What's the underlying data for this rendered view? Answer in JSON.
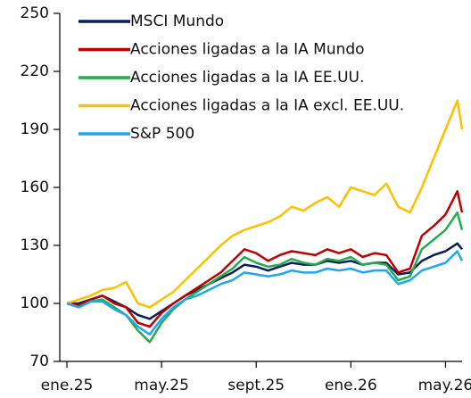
{
  "chart_data": {
    "type": "line",
    "x": [
      0,
      0.5,
      1,
      1.5,
      2,
      2.5,
      3,
      3.5,
      4,
      4.5,
      5,
      5.5,
      6,
      6.5,
      7,
      7.5,
      8,
      8.5,
      9,
      9.5,
      10,
      10.5,
      11,
      11.5,
      12,
      12.5,
      13,
      13.5,
      14,
      14.5,
      15,
      15.5,
      16,
      16.5,
      16.7
    ],
    "xlim": [
      0,
      16.7
    ],
    "xticks": [
      {
        "value": 0,
        "label": "ene.25"
      },
      {
        "value": 4,
        "label": "may.25"
      },
      {
        "value": 8,
        "label": "sept.25"
      },
      {
        "value": 12,
        "label": "ene.26"
      },
      {
        "value": 16,
        "label": "may.26"
      }
    ],
    "ylim": [
      70,
      250
    ],
    "yticks": [
      70,
      100,
      130,
      160,
      190,
      220,
      250
    ],
    "series": [
      {
        "name": "MSCI Mundo",
        "color": "#0b1e5b",
        "values": [
          100,
          100,
          102,
          104,
          101,
          98,
          94,
          92,
          96,
          100,
          104,
          107,
          110,
          113,
          116,
          120,
          119,
          117,
          119,
          121,
          120,
          120,
          122,
          121,
          122,
          120,
          121,
          121,
          115,
          116,
          122,
          125,
          127,
          131,
          128
        ]
      },
      {
        "name": "Acciones ligadas a la IA Mundo",
        "color": "#c00000",
        "values": [
          100,
          99,
          102,
          104,
          100,
          98,
          90,
          88,
          95,
          100,
          104,
          108,
          112,
          116,
          122,
          128,
          126,
          122,
          125,
          127,
          126,
          125,
          128,
          126,
          128,
          124,
          126,
          125,
          116,
          118,
          135,
          140,
          146,
          158,
          147
        ]
      },
      {
        "name": "Acciones ligadas a la IA EE.UU.",
        "color": "#1fae4b",
        "values": [
          100,
          98,
          101,
          102,
          98,
          94,
          86,
          80,
          90,
          97,
          102,
          106,
          110,
          114,
          118,
          124,
          121,
          119,
          120,
          123,
          121,
          120,
          123,
          122,
          124,
          120,
          121,
          120,
          112,
          114,
          128,
          133,
          138,
          147,
          138
        ]
      },
      {
        "name": "Acciones ligadas a la IA excl. EE.UU.",
        "color": "#ffc000",
        "values": [
          100,
          102,
          104,
          107,
          108,
          111,
          100,
          98,
          102,
          106,
          112,
          118,
          124,
          130,
          135,
          138,
          140,
          142,
          145,
          150,
          148,
          152,
          155,
          150,
          160,
          158,
          156,
          162,
          150,
          147,
          160,
          175,
          190,
          205,
          190
        ]
      },
      {
        "name": "S&P 500",
        "color": "#1ea7f0",
        "values": [
          100,
          98,
          101,
          101,
          97,
          94,
          88,
          84,
          92,
          98,
          102,
          104,
          107,
          110,
          112,
          116,
          115,
          114,
          115,
          117,
          116,
          116,
          118,
          117,
          118,
          116,
          117,
          117,
          110,
          112,
          117,
          119,
          121,
          127,
          122
        ]
      }
    ]
  }
}
